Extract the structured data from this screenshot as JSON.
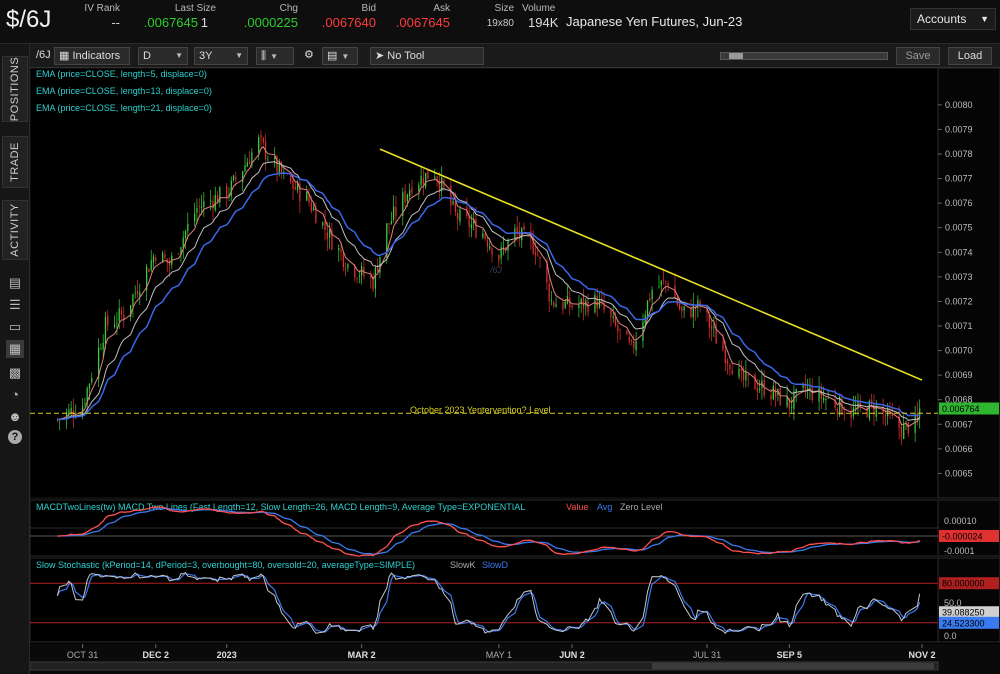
{
  "quote": {
    "symbol": "$/6J",
    "headers": {
      "iv_rank": "IV Rank",
      "last_size": "Last Size",
      "chg": "Chg",
      "bid": "Bid",
      "ask": "Ask",
      "size": "Size",
      "volume": "Volume"
    },
    "values": {
      "iv_rank": "--",
      "last": ".0067645",
      "last_size": "1",
      "chg": ".0000225",
      "bid": ".0067640",
      "ask": ".0067645",
      "size": "19x80",
      "volume": "194K"
    },
    "contract_name": "Japanese Yen Futures, Jun-23",
    "colors": {
      "up": "#2ecc2e",
      "down": "#ff3b3b"
    }
  },
  "accounts": {
    "label": "Accounts",
    "icon": "chevron-down-icon"
  },
  "sidebar": {
    "tabs": [
      "POSITIONS",
      "TRADE",
      "ACTIVITY"
    ],
    "icons": [
      "document-icon",
      "list-icon",
      "desktop-icon",
      "chart-icon",
      "grid-icon",
      "gauge-icon",
      "people-icon",
      "help-icon"
    ]
  },
  "toolbar": {
    "symbol_short": "/6J",
    "indicators_label": "Indicators",
    "period": "D",
    "range": "3Y",
    "tool": "No Tool",
    "save_label": "Save",
    "load_label": "Load"
  },
  "chart_data": [
    {
      "type": "candlestick",
      "title": "",
      "watermark": "/6J",
      "studies": [
        "EMA (price=CLOSE, length=5, displace=0)",
        "EMA (price=CLOSE, length=13, displace=0)",
        "EMA (price=CLOSE, length=21, displace=0)"
      ],
      "ylim": [
        0.0064,
        0.00815
      ],
      "y_ticks": [
        "0.0080",
        "0.0079",
        "0.0078",
        "0.0077",
        "0.0076",
        "0.0075",
        "0.0074",
        "0.0073",
        "0.0072",
        "0.0071",
        "0.0070",
        "0.0069",
        "0.0068",
        "0.0067",
        "0.0066",
        "0.0065"
      ],
      "x_ticks": [
        "OCT 31",
        "DEC 2",
        "2023",
        "MAR 2",
        "MAY 1",
        "JUN 2",
        "JUL 31",
        "SEP 5",
        "NOV 2"
      ],
      "last_price_label": "0.006764",
      "close_points": [
        [
          "2022-10-20",
          0.00672
        ],
        [
          "2022-10-31",
          0.00678
        ],
        [
          "2022-11-10",
          0.0071
        ],
        [
          "2022-11-18",
          0.00715
        ],
        [
          "2022-12-02",
          0.0074
        ],
        [
          "2022-12-08",
          0.00735
        ],
        [
          "2022-12-20",
          0.00758
        ],
        [
          "2023-01-03",
          0.00765
        ],
        [
          "2023-01-16",
          0.00785
        ],
        [
          "2023-01-27",
          0.0077
        ],
        [
          "2023-02-06",
          0.00762
        ],
        [
          "2023-02-17",
          0.00745
        ],
        [
          "2023-02-24",
          0.00735
        ],
        [
          "2023-03-07",
          0.00728
        ],
        [
          "2023-03-13",
          0.0075
        ],
        [
          "2023-03-24",
          0.00768
        ],
        [
          "2023-04-03",
          0.00773
        ],
        [
          "2023-04-12",
          0.00755
        ],
        [
          "2023-04-24",
          0.00748
        ],
        [
          "2023-05-01",
          0.00738
        ],
        [
          "2023-05-08",
          0.00748
        ],
        [
          "2023-05-17",
          0.00742
        ],
        [
          "2023-05-24",
          0.0072
        ],
        [
          "2023-06-02",
          0.00718
        ],
        [
          "2023-06-13",
          0.0072
        ],
        [
          "2023-06-19",
          0.00712
        ],
        [
          "2023-06-28",
          0.007
        ],
        [
          "2023-07-07",
          0.00725
        ],
        [
          "2023-07-14",
          0.00728
        ],
        [
          "2023-07-20",
          0.00715
        ],
        [
          "2023-07-28",
          0.00718
        ],
        [
          "2023-08-04",
          0.00705
        ],
        [
          "2023-08-15",
          0.00688
        ],
        [
          "2023-08-25",
          0.00685
        ],
        [
          "2023-09-05",
          0.00678
        ],
        [
          "2023-09-12",
          0.00684
        ],
        [
          "2023-09-22",
          0.0068
        ],
        [
          "2023-10-02",
          0.00675
        ],
        [
          "2023-10-12",
          0.00677
        ],
        [
          "2023-10-24",
          0.00668
        ],
        [
          "2023-10-31",
          0.00671
        ],
        [
          "2023-11-01",
          0.00676
        ]
      ],
      "annotations": [
        {
          "type": "trendline",
          "from": [
            "2023-03-10",
            0.00782
          ],
          "to": [
            "2023-11-02",
            0.00688
          ],
          "color": "#e8e020"
        },
        {
          "type": "hline",
          "y": 0.006745,
          "label": "October 2023 Yentervention? Level",
          "color": "#d8d020"
        }
      ]
    },
    {
      "type": "line",
      "title": "MACDTwoLines(tw) MACD Two Lines (Fast Length=12, Slow Length=26, MACD Length=9, Average Type=EXPONENTIAL",
      "legend": [
        "Value",
        "Avg",
        "Zero Level"
      ],
      "y_ticks": [
        "0.00010",
        "-0.0001"
      ],
      "last_value_label": "-0.000024"
    },
    {
      "type": "line",
      "title": "Slow Stochastic (kPeriod=14, dPeriod=3, overbought=80, oversold=20, averageType=SIMPLE)",
      "legend": [
        "SlowK",
        "SlowD"
      ],
      "ylim": [
        0,
        100
      ],
      "y_ticks": [
        "50.0",
        "0.0"
      ],
      "overbought": 80,
      "oversold": 20,
      "overbought_label": "80.000000",
      "slowk_label": "39.088250",
      "slowd_label": "24.523300"
    }
  ]
}
